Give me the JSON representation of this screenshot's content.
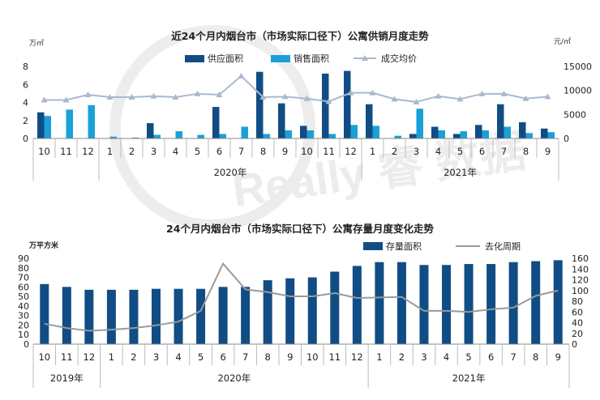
{
  "chart_data": [
    {
      "type": "bar",
      "title": "近24个月内烟台市（市场实际口径下）公寓供销月度走势",
      "y_unit_left": "万㎡",
      "y_unit_right": "元/㎡",
      "ylim_left": [
        0,
        8
      ],
      "yticks_left": [
        "0",
        "2",
        "4",
        "6",
        "8"
      ],
      "ylim_right": [
        0,
        15000
      ],
      "yticks_right": [
        "0",
        "5000",
        "10000",
        "15000"
      ],
      "categories": [
        "10",
        "11",
        "12",
        "1",
        "2",
        "3",
        "4",
        "5",
        "6",
        "7",
        "8",
        "9",
        "10",
        "11",
        "12",
        "1",
        "2",
        "3",
        "4",
        "5",
        "6",
        "7",
        "8",
        "9"
      ],
      "year_labels": [
        "2020年",
        "2021年"
      ],
      "legend_position": "top-center",
      "grid": false,
      "colors": {
        "supply": "#114d84",
        "sales": "#1aa0d8",
        "price": "#a9b8cf"
      },
      "series": [
        {
          "name": "供应面积",
          "kind": "bar",
          "axis": "left",
          "values": [
            2.9,
            0,
            0,
            0,
            0,
            1.7,
            0,
            0,
            3.5,
            0,
            7.4,
            3.9,
            1.4,
            7.2,
            7.5,
            3.8,
            0,
            0.5,
            1.3,
            0.5,
            1.5,
            3.8,
            1.8,
            1.1
          ]
        },
        {
          "name": "销售面积",
          "kind": "bar",
          "axis": "left",
          "values": [
            2.5,
            3.2,
            3.7,
            0.2,
            0.1,
            0.4,
            0.8,
            0.4,
            0.5,
            1.3,
            0.5,
            0.9,
            0.9,
            0.5,
            1.5,
            1.4,
            0.3,
            3.3,
            0.9,
            0.8,
            0.9,
            1.3,
            0.6,
            0.7
          ]
        },
        {
          "name": "成交均价",
          "kind": "line",
          "axis": "right",
          "values": [
            8000,
            8000,
            9100,
            8600,
            8600,
            8800,
            8600,
            9300,
            9100,
            13000,
            8600,
            8700,
            8300,
            7700,
            9500,
            9500,
            8200,
            7600,
            8800,
            8200,
            9300,
            9300,
            8300,
            8700
          ]
        }
      ]
    },
    {
      "type": "bar",
      "title": "24个月内烟台市（市场实际口径下）公寓存量月度变化走势",
      "y_unit_left": "万平方米",
      "ylim_left": [
        0,
        90
      ],
      "yticks_left": [
        "0",
        "10",
        "20",
        "30",
        "40",
        "50",
        "60",
        "70",
        "80",
        "90"
      ],
      "ylim_right": [
        0,
        160
      ],
      "yticks_right": [
        "0",
        "20",
        "40",
        "60",
        "80",
        "100",
        "120",
        "140",
        "160"
      ],
      "categories": [
        "10",
        "11",
        "12",
        "1",
        "2",
        "3",
        "4",
        "5",
        "6",
        "7",
        "8",
        "9",
        "10",
        "11",
        "12",
        "1",
        "2",
        "3",
        "4",
        "5",
        "6",
        "7",
        "8",
        "9"
      ],
      "year_labels": [
        "2019年",
        "2020年",
        "2021年"
      ],
      "legend_position": "top-right",
      "grid": false,
      "colors": {
        "stock": "#114d84",
        "cycle": "#9a9a9a"
      },
      "series": [
        {
          "name": "存量面积",
          "kind": "bar",
          "axis": "left",
          "values": [
            63,
            60,
            57,
            57,
            57,
            58,
            58,
            58,
            60,
            60,
            67,
            69,
            70,
            76,
            82,
            86,
            86,
            83,
            83,
            84,
            84,
            86,
            87,
            88
          ]
        },
        {
          "name": "去化周期",
          "kind": "line",
          "axis": "right",
          "values": [
            38,
            30,
            25,
            27,
            30,
            35,
            42,
            62,
            150,
            102,
            97,
            89,
            89,
            95,
            86,
            87,
            88,
            62,
            62,
            60,
            65,
            68,
            90,
            100
          ]
        }
      ]
    }
  ],
  "watermark": "Really 睿 数据"
}
